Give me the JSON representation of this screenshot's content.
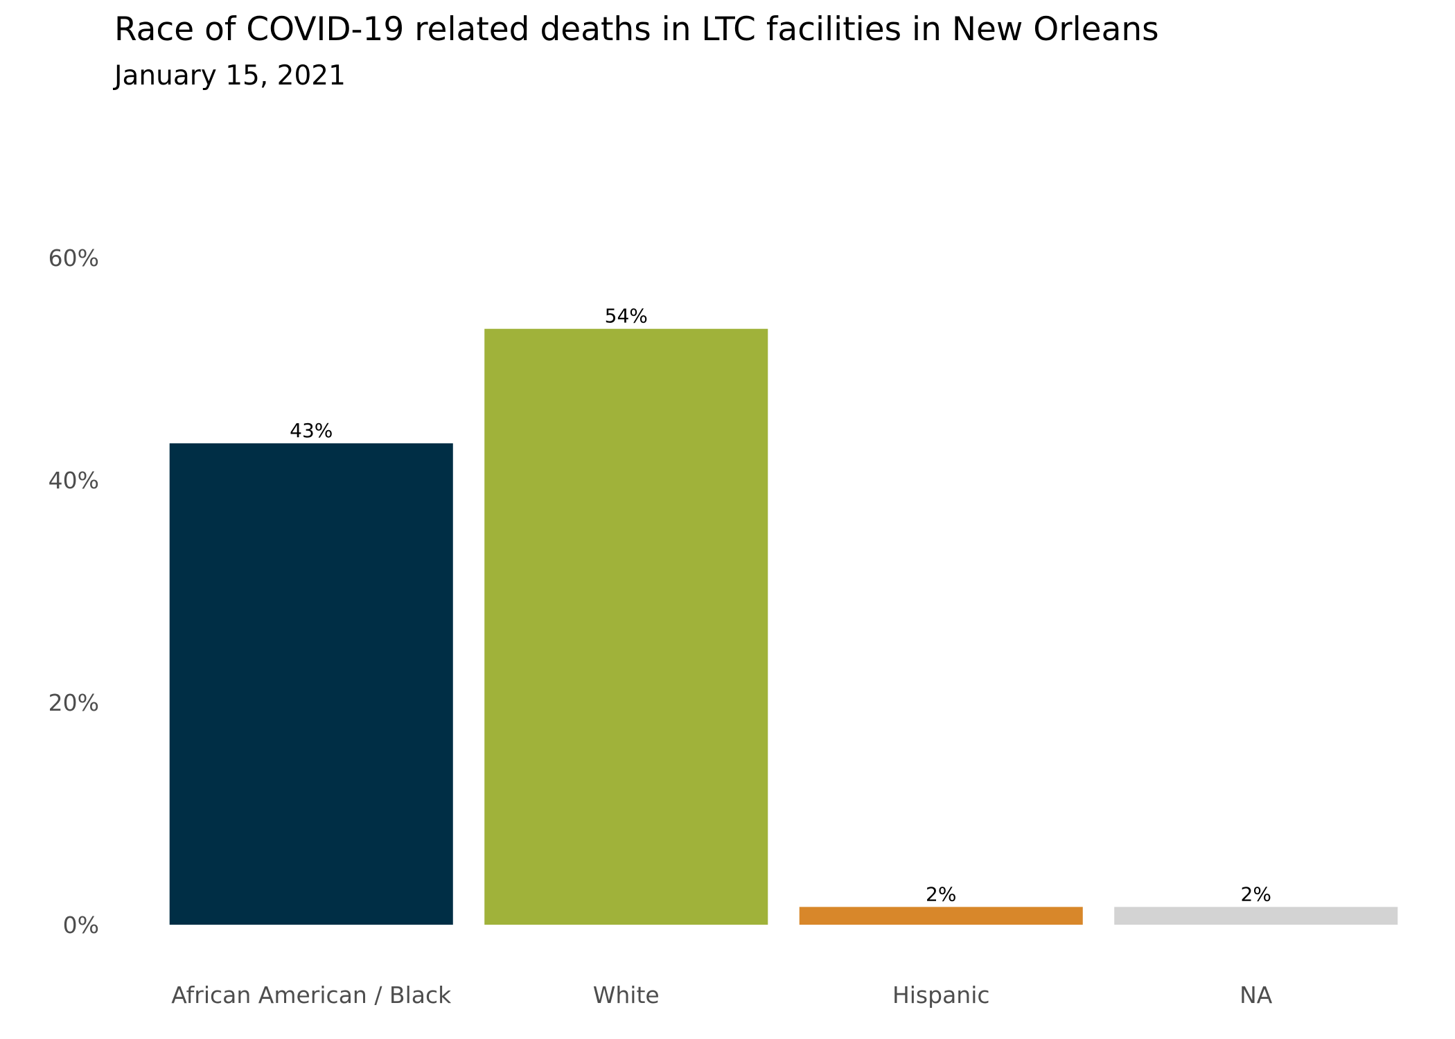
{
  "chart_data": {
    "type": "bar",
    "title": "Race of COVID-19 related deaths in LTC facilities in New Orleans",
    "subtitle": "January 15, 2021",
    "xlabel": "",
    "ylabel": "",
    "categories": [
      "African American / Black",
      "White",
      "Hispanic",
      "NA"
    ],
    "values": [
      43.3,
      53.6,
      1.6,
      1.6
    ],
    "data_labels": [
      "43%",
      "54%",
      "2%",
      "2%"
    ],
    "colors": [
      "#002e45",
      "#a0b23a",
      "#d8872a",
      "#d3d3d3"
    ],
    "ylim": [
      0,
      60
    ],
    "yticks": [
      0,
      20,
      40,
      60
    ],
    "ytick_labels": [
      "0%",
      "20%",
      "40%",
      "60%"
    ],
    "grid": false,
    "legend": "none"
  }
}
